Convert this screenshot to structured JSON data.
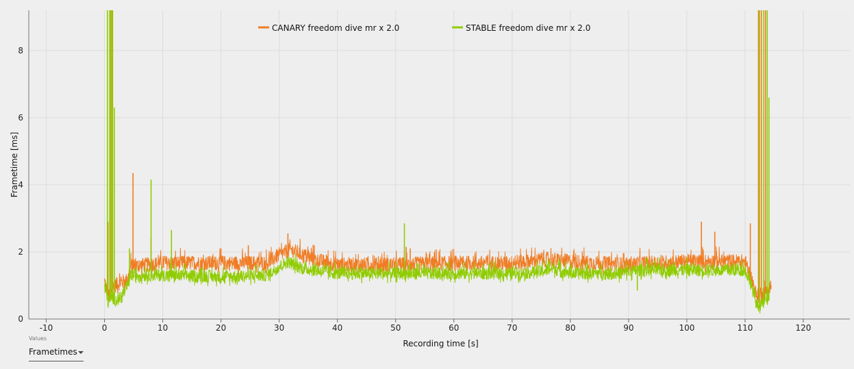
{
  "chart_data": {
    "type": "line",
    "xlabel": "Recording time [s]",
    "ylabel": "Frametime [ms]",
    "xlim": [
      -13,
      128
    ],
    "ylim": [
      0,
      9.2
    ],
    "xticks": [
      -10,
      0,
      10,
      20,
      30,
      40,
      50,
      60,
      70,
      80,
      90,
      100,
      110,
      120
    ],
    "yticks": [
      0,
      2,
      4,
      6,
      8
    ],
    "grid": true,
    "legend_position": "top-center",
    "series": [
      {
        "name": "CANARY freedom dive mr x 2.0",
        "color": "#f07c24",
        "baseline": [
          [
            0,
            1.0
          ],
          [
            0.8,
            0.6
          ],
          [
            1.5,
            0.9
          ],
          [
            2.5,
            1.0
          ],
          [
            4.0,
            1.1
          ],
          [
            4.5,
            1.5
          ],
          [
            10,
            1.6
          ],
          [
            20,
            1.6
          ],
          [
            28,
            1.6
          ],
          [
            30,
            1.85
          ],
          [
            32,
            2.0
          ],
          [
            36,
            1.7
          ],
          [
            40,
            1.55
          ],
          [
            50,
            1.55
          ],
          [
            60,
            1.6
          ],
          [
            70,
            1.6
          ],
          [
            73,
            1.65
          ],
          [
            75,
            1.7
          ],
          [
            77,
            1.7
          ],
          [
            80,
            1.65
          ],
          [
            90,
            1.55
          ],
          [
            92,
            1.6
          ],
          [
            95,
            1.6
          ],
          [
            100,
            1.65
          ],
          [
            105,
            1.65
          ],
          [
            110,
            1.65
          ],
          [
            111,
            1.2
          ],
          [
            112,
            0.6
          ],
          [
            113,
            0.7
          ],
          [
            114,
            0.8
          ],
          [
            114.5,
            0.9
          ]
        ],
        "amplitude": 0.45,
        "spikes": [
          [
            0.6,
            2.9
          ],
          [
            1.0,
            9.2
          ],
          [
            1.3,
            9.2
          ],
          [
            4.9,
            4.35
          ],
          [
            8.0,
            2.4
          ],
          [
            20.0,
            2.1
          ],
          [
            24.7,
            2.2
          ],
          [
            31.5,
            2.55
          ],
          [
            36.0,
            2.2
          ],
          [
            51.8,
            2.15
          ],
          [
            52.5,
            2.1
          ],
          [
            102.5,
            2.9
          ],
          [
            104.8,
            2.6
          ],
          [
            110.9,
            2.85
          ],
          [
            112.3,
            9.2
          ],
          [
            112.8,
            9.2
          ],
          [
            113.5,
            9.2
          ]
        ]
      },
      {
        "name": "STABLE freedom dive mr x 2.0",
        "color": "#8fcc00",
        "baseline": [
          [
            0,
            0.9
          ],
          [
            0.7,
            0.45
          ],
          [
            1.3,
            0.6
          ],
          [
            2.0,
            0.5
          ],
          [
            3.0,
            0.6
          ],
          [
            4.0,
            0.95
          ],
          [
            4.5,
            1.25
          ],
          [
            10,
            1.25
          ],
          [
            20,
            1.2
          ],
          [
            28,
            1.25
          ],
          [
            30,
            1.5
          ],
          [
            31.5,
            1.65
          ],
          [
            34,
            1.45
          ],
          [
            40,
            1.3
          ],
          [
            50,
            1.3
          ],
          [
            60,
            1.3
          ],
          [
            70,
            1.3
          ],
          [
            75,
            1.35
          ],
          [
            77,
            1.45
          ],
          [
            80,
            1.3
          ],
          [
            88,
            1.3
          ],
          [
            92,
            1.4
          ],
          [
            95,
            1.4
          ],
          [
            100,
            1.4
          ],
          [
            105,
            1.4
          ],
          [
            110,
            1.4
          ],
          [
            111,
            1.0
          ],
          [
            112,
            0.35
          ],
          [
            113,
            0.4
          ],
          [
            114,
            0.55
          ]
        ],
        "amplitude": 0.38,
        "spikes": [
          [
            0.5,
            9.2
          ],
          [
            0.9,
            9.2
          ],
          [
            1.1,
            9.2
          ],
          [
            1.4,
            9.2
          ],
          [
            1.7,
            6.3
          ],
          [
            4.3,
            2.1
          ],
          [
            8.0,
            4.15
          ],
          [
            11.5,
            2.65
          ],
          [
            51.5,
            2.85
          ],
          [
            91.5,
            0.85
          ],
          [
            112.5,
            9.2
          ],
          [
            113.2,
            9.2
          ],
          [
            113.8,
            9.2
          ],
          [
            114.1,
            6.6
          ]
        ]
      }
    ]
  },
  "controls": {
    "values_caption": "Values",
    "values_selected": "Frametimes"
  }
}
